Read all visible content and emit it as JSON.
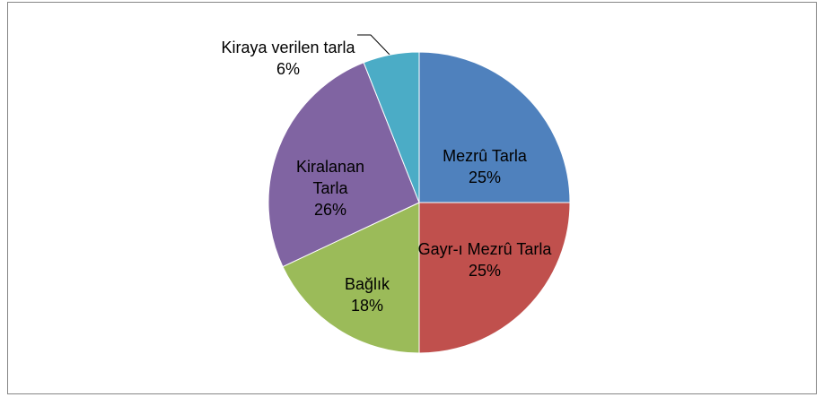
{
  "chart_data": {
    "type": "pie",
    "categories": [
      "Mezrû Tarla",
      "Gayr-ı Mezrû Tarla",
      "Bağlık",
      "Kiralanan Tarla",
      "Kiraya verilen tarla"
    ],
    "values": [
      25,
      25,
      18,
      26,
      6
    ],
    "value_labels": [
      "25%",
      "25%",
      "18%",
      "26%",
      "6%"
    ],
    "colors": [
      "#4f81bd",
      "#c0504d",
      "#9bbb59",
      "#8064a2",
      "#4bacc6"
    ]
  }
}
